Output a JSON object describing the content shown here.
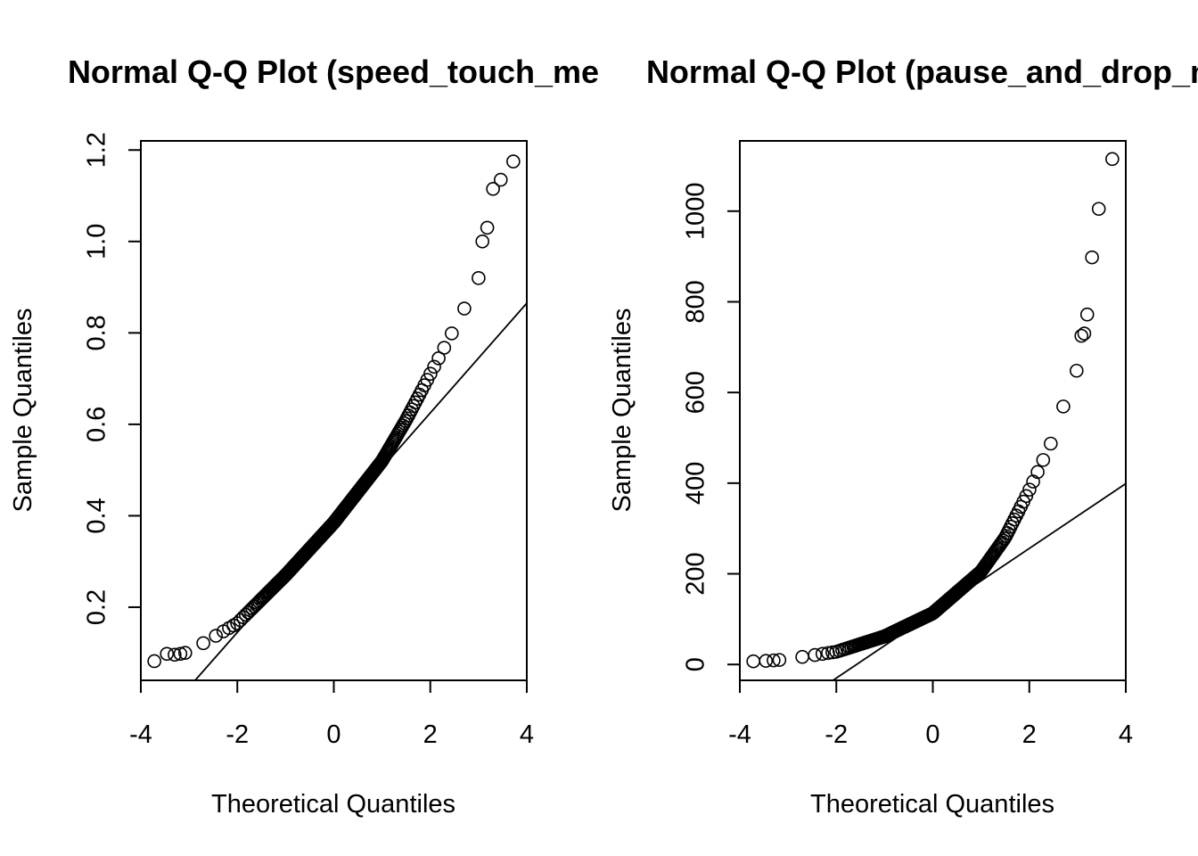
{
  "chart_data": [
    {
      "type": "scatter",
      "title": "Normal Q-Q Plot (speed_touch_me",
      "xlabel": "Theoretical Quantiles",
      "ylabel": "Sample Quantiles",
      "xlim": [
        -4,
        4
      ],
      "ylim": [
        0.04,
        1.22
      ],
      "xticks": [
        -4,
        -2,
        0,
        2,
        4
      ],
      "xtick_labels": [
        "-4",
        "-2",
        "0",
        "2",
        "4"
      ],
      "yticks": [
        0.2,
        0.4,
        0.6,
        0.8,
        1.0,
        1.2
      ],
      "ytick_labels": [
        "0.2",
        "0.4",
        "0.6",
        "0.8",
        "1.0",
        "1.2"
      ],
      "grid": false,
      "reference_line": {
        "intercept": 0.385,
        "slope": 0.12
      },
      "outlier_points": [
        {
          "x": -3.72,
          "y": 0.082
        },
        {
          "x": -3.46,
          "y": 0.098
        },
        {
          "x": -3.3,
          "y": 0.096
        },
        {
          "x": -3.18,
          "y": 0.098
        },
        {
          "x": -3.08,
          "y": 0.1
        },
        {
          "x": 3.0,
          "y": 0.92
        },
        {
          "x": 3.08,
          "y": 1.0
        },
        {
          "x": 3.18,
          "y": 1.03
        },
        {
          "x": 3.3,
          "y": 1.115
        },
        {
          "x": 3.46,
          "y": 1.135
        },
        {
          "x": 3.72,
          "y": 1.175
        }
      ],
      "curve_knots": [
        {
          "x": -3.0,
          "y": 0.103
        },
        {
          "x": -2.0,
          "y": 0.165
        },
        {
          "x": -1.0,
          "y": 0.27
        },
        {
          "x": 0.0,
          "y": 0.385
        },
        {
          "x": 1.0,
          "y": 0.52
        },
        {
          "x": 1.5,
          "y": 0.61
        },
        {
          "x": 2.0,
          "y": 0.71
        },
        {
          "x": 2.5,
          "y": 0.81
        },
        {
          "x": 2.95,
          "y": 0.905
        }
      ],
      "curve_point_count": 260
    },
    {
      "type": "scatter",
      "title": "Normal Q-Q Plot (pause_and_drop_m",
      "xlabel": "Theoretical Quantiles",
      "ylabel": "Sample Quantiles",
      "xlim": [
        -4,
        4
      ],
      "ylim": [
        -35,
        1155
      ],
      "xticks": [
        -4,
        -2,
        0,
        2,
        4
      ],
      "xtick_labels": [
        "-4",
        "-2",
        "0",
        "2",
        "4"
      ],
      "yticks": [
        0,
        200,
        400,
        600,
        800,
        1000
      ],
      "ytick_labels": [
        "0",
        "200",
        "400",
        "600",
        "800",
        "1000"
      ],
      "grid": false,
      "reference_line": {
        "intercept": 113,
        "slope": 71.5
      },
      "outlier_points": [
        {
          "x": -3.72,
          "y": 7
        },
        {
          "x": -3.46,
          "y": 8
        },
        {
          "x": -3.3,
          "y": 9
        },
        {
          "x": -3.18,
          "y": 10
        },
        {
          "x": 2.98,
          "y": 648
        },
        {
          "x": 3.08,
          "y": 725
        },
        {
          "x": 3.14,
          "y": 730
        },
        {
          "x": 3.2,
          "y": 772
        },
        {
          "x": 3.3,
          "y": 898
        },
        {
          "x": 3.44,
          "y": 1005
        },
        {
          "x": 3.72,
          "y": 1115
        }
      ],
      "curve_knots": [
        {
          "x": -3.0,
          "y": 12
        },
        {
          "x": -2.0,
          "y": 28
        },
        {
          "x": -1.0,
          "y": 62
        },
        {
          "x": 0.0,
          "y": 113
        },
        {
          "x": 1.0,
          "y": 205
        },
        {
          "x": 1.5,
          "y": 280
        },
        {
          "x": 2.0,
          "y": 385
        },
        {
          "x": 2.5,
          "y": 500
        },
        {
          "x": 2.9,
          "y": 635
        }
      ],
      "curve_point_count": 260
    }
  ]
}
